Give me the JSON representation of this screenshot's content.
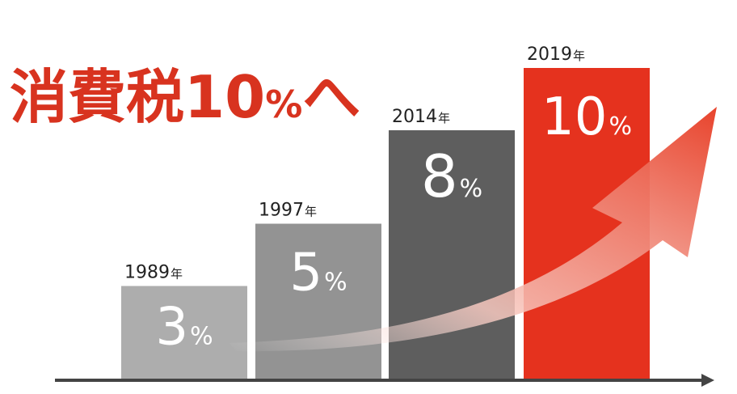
{
  "chart_data": {
    "type": "bar",
    "title": "消費税10%へ",
    "title_parts": {
      "main": "消費税10",
      "pct": "%",
      "tail": "へ"
    },
    "categories": [
      "1989",
      "1997",
      "2014",
      "2019"
    ],
    "year_suffix": "年",
    "values": [
      3,
      5,
      8,
      10
    ],
    "value_labels": [
      "3",
      "5",
      "8",
      "10"
    ],
    "unit": "%",
    "ylim": [
      0,
      12
    ],
    "grid": false,
    "legend": "none"
  },
  "colors": {
    "title": "#d8331f",
    "bar_1989": "#adadad",
    "bar_1997": "#939393",
    "bar_2014": "#5e5e5e",
    "bar_2019": "#e5321e",
    "value_text": "#ffffff",
    "year_text": "#222222",
    "axis": "#444444",
    "arrow": "#e8432c"
  }
}
